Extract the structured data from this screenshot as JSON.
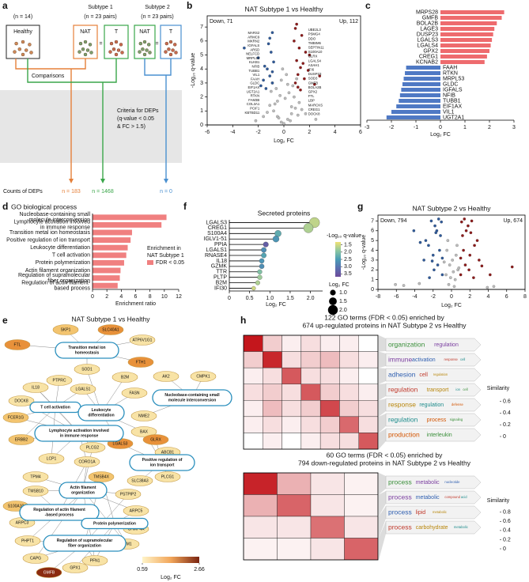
{
  "panel_labels": [
    "a",
    "b",
    "c",
    "d",
    "e",
    "f",
    "g",
    "h"
  ],
  "diagram_a": {
    "healthy": {
      "n": "(n = 14)",
      "box": "Healthy"
    },
    "subtypes": [
      {
        "title": "Subtype 1",
        "n": "(n = 23 pairs)",
        "boxes": [
          "NAT",
          "T"
        ],
        "relation": "="
      },
      {
        "title": "Subtype 2",
        "n": "(n = 23 pairs)",
        "boxes": [
          "NAT",
          "T"
        ],
        "relation": "="
      }
    ],
    "comparisons": "Comparisons",
    "criteria": [
      "Criteria for DEPs",
      "(q-value < 0.05",
      "& FC > 1.5)"
    ],
    "counts_label": "Counts of DEPs",
    "counts": [
      {
        "text": "n = 183",
        "color": "#e5803a"
      },
      {
        "text": "n = 1468",
        "color": "#3aa64a"
      },
      {
        "text": "n = 0",
        "color": "#4a90d0"
      }
    ]
  },
  "chart_data": [
    {
      "type": "volcano",
      "title": "NAT Subtype 1 vs Healthy",
      "annotations": [
        "Down, 71",
        "Up, 112"
      ],
      "xlabel": "Log₂ FC",
      "ylabel": "-Log₁₀ q-value",
      "xlim": [
        -6,
        6
      ],
      "xticks": [
        -6,
        -4,
        -2,
        0,
        2,
        4,
        6
      ],
      "ylim": [
        0,
        7.8
      ],
      "yticks": [
        0,
        1,
        2,
        3,
        4,
        5,
        6,
        7
      ],
      "series": [
        {
          "color": "#bdbdbd",
          "x": [
            -0.2,
            0.3,
            -0.5,
            0.6,
            -0.8,
            0.9,
            -1.1,
            1.2,
            0.1,
            -0.3,
            0.4,
            -0.6,
            0.7,
            -0.9,
            1.0,
            -1.3,
            1.4,
            0.2,
            -0.1,
            0.5,
            -0.4,
            0.8,
            -0.7,
            1.1,
            -1.0,
            0.0,
            -1.6,
            1.7,
            -2.2,
            2.5,
            0.3,
            -0.2,
            0.6,
            -0.5
          ],
          "y": [
            0.2,
            0.4,
            0.6,
            0.8,
            1.0,
            1.2,
            1.4,
            1.6,
            1.9,
            2.1,
            2.3,
            2.6,
            2.8,
            3.0,
            3.3,
            0.9,
            1.1,
            3.6,
            4.0,
            0.3,
            0.5,
            2.0,
            1.5,
            0.7,
            2.4,
            0.1,
            0.6,
            0.8,
            0.3,
            0.4,
            2.9,
            3.2,
            1.3,
            1.7
          ]
        },
        {
          "color": "#2f5a9a",
          "x": [
            -0.9,
            -1.1,
            -1.3,
            -0.8,
            -1.6,
            -2.0,
            -1.0,
            -1.2,
            -1.5,
            -0.9,
            -1.8,
            -1.1,
            -3.1,
            -0.9,
            -1.4
          ],
          "y": [
            3.0,
            3.5,
            4.0,
            4.5,
            3.2,
            4.8,
            5.2,
            5.8,
            4.2,
            3.8,
            2.8,
            6.2,
            5.5,
            6.6,
            2.6
          ]
        },
        {
          "color": "#8e1b1b",
          "x": [
            0.9,
            1.1,
            1.3,
            1.0,
            1.6,
            2.0,
            1.2,
            0.8,
            1.5,
            1.9,
            1.1,
            1.4,
            2.4,
            0.9,
            1.7,
            1.0,
            1.3,
            2.8
          ],
          "y": [
            3.0,
            3.6,
            4.1,
            4.6,
            3.3,
            5.0,
            5.5,
            6.0,
            4.4,
            3.9,
            2.7,
            6.4,
            2.9,
            6.9,
            5.2,
            7.2,
            2.5,
            3.5
          ]
        }
      ],
      "labels_left": [
        "MARS2",
        "ARMC9",
        "MKRN2",
        "IGFALS",
        "ARSD",
        "NELFCD",
        "MRPL53",
        "KLKB1",
        "NFIB",
        "TUBB1",
        "VIL1",
        "FAAH",
        "GLDC",
        "EIF1AX",
        "UGT2A1",
        "RTKN",
        "FAM3B",
        "COL3A1",
        "PCIF1",
        "KBTBD11"
      ],
      "labels_right": [
        "UBE2L3",
        "PSMG4",
        "DDO",
        "TMBIM6",
        "SEPTIN11",
        "S100A10",
        "GLRX",
        "LGALS4",
        "ASAH1",
        "IFI6",
        "DUSP23",
        "SOD3",
        "GMFB",
        "BOLA2B",
        "GPX2",
        "FTL",
        "LBP",
        "MARCKS",
        "CREG1",
        "DOCK8"
      ]
    },
    {
      "type": "hbar",
      "xlabel": "Log₂ FC",
      "categories": [
        "MRPS28",
        "GMFB",
        "BOLA2B",
        "LAGE3",
        "DUSP23",
        "LGALS3",
        "LGALS4",
        "GPX2",
        "CREG1",
        "KCNAB2",
        "FAAH",
        "RTKN",
        "MRPL53",
        "GLDC",
        "IGFALS",
        "NFIB",
        "TUBB1",
        "EIF1AX",
        "VIL1",
        "UGT2A1"
      ],
      "values": [
        2.6,
        2.5,
        2.3,
        2.2,
        2.15,
        2.1,
        2.05,
        2.0,
        1.9,
        1.8,
        -1.4,
        -1.45,
        -1.5,
        -1.55,
        -1.6,
        -1.65,
        -1.7,
        -1.8,
        -2.0,
        -2.2
      ],
      "color_positive": "#ee6b6e",
      "color_negative": "#4f79c4",
      "xlim": [
        -3,
        3
      ],
      "xticks": [
        -3,
        -2,
        -1,
        0,
        1,
        2,
        3
      ]
    },
    {
      "type": "hbar",
      "title": "GO biological process",
      "xlabel": "Enrichment ratio",
      "categories": [
        [
          "Nucleobase-containing small",
          "molecule interconversion"
        ],
        [
          "Lymphocyte activation involved",
          "in immune response"
        ],
        [
          "Transition metal ion homeostasis"
        ],
        [
          "Positive regulation of ion transport"
        ],
        [
          "Leukocyte differentiation"
        ],
        [
          "T cell activation"
        ],
        [
          "Protein polymerization"
        ],
        [
          "Actin filament organization"
        ],
        [
          "Regulation of supramolecular",
          "fiber organization"
        ],
        [
          "Regulation of actin filament-",
          "based process"
        ]
      ],
      "values": [
        10.3,
        9.6,
        5.5,
        5.3,
        4.9,
        4.7,
        4.4,
        3.9,
        3.8,
        3.5
      ],
      "color": "#f08080",
      "legend": [
        "Enrichment in",
        "NAT Subtype 1"
      ],
      "legend_entry": "FDR < 0.05",
      "xlim": [
        0,
        12
      ],
      "xticks": [
        0,
        2,
        4,
        6,
        8,
        10,
        12
      ]
    },
    {
      "type": "lollipop",
      "title": "Secreted proteins",
      "xlabel": "Log₂ FC",
      "categories": [
        "LGALS3",
        "CREG1",
        "S100A4",
        "IGLV1-51",
        "PPIA",
        "LGALS1",
        "RNASE4",
        "IL18",
        "GZMK",
        "TTR",
        "PLTP",
        "B2M",
        "IFI30"
      ],
      "values": [
        2.1,
        1.95,
        1.2,
        1.15,
        0.9,
        0.85,
        0.85,
        0.8,
        0.8,
        0.75,
        0.75,
        0.7,
        0.6
      ],
      "color_values": [
        1.6,
        1.7,
        2.3,
        2.6,
        3.4,
        2.7,
        2.4,
        2.6,
        2.7,
        2.0,
        1.8,
        1.7,
        1.5
      ],
      "xlim": [
        0,
        2.3
      ],
      "xticks": [
        0,
        0.5,
        {
          "value": 1,
          "label": "1.0"
        },
        1.5,
        {
          "value": 2,
          "label": "2.0"
        }
      ],
      "colorbar_title": "-Log₁₀ q-value",
      "clim": [
        1.3,
        3.7
      ],
      "colorbar_ticks": [
        1.5,
        {
          "value": 2,
          "label": "2.0"
        },
        2.5,
        {
          "value": 3,
          "label": "3.0"
        },
        3.5
      ],
      "colormap": [
        "#f1e173",
        "#8cc7a1",
        "#4a9db6",
        "#5a6fb0",
        "#6d4a9a"
      ],
      "size_title": "Log₂ FC",
      "size_ticks": [
        {
          "value": 1,
          "label": "1.0"
        },
        1.5,
        {
          "value": 2,
          "label": "2.0"
        }
      ]
    },
    {
      "type": "volcano",
      "title": "NAT Subtype 2 vs Healthy",
      "annotations": [
        "Down, 794",
        "Up, 674"
      ],
      "xlabel": "Log₂ FC",
      "ylabel": "-Log₁₀ q-value",
      "xlim": [
        -8,
        8
      ],
      "xticks": [
        -8,
        -6,
        -4,
        -2,
        0,
        2,
        4,
        6,
        8
      ],
      "ylim": [
        0,
        7.6
      ],
      "yticks": [
        0,
        1,
        2,
        3,
        4,
        5,
        6,
        7
      ],
      "series": [
        {
          "color": "#bdbdbd",
          "x": [
            -0.3,
            0.4,
            -0.6,
            0.7,
            -0.2,
            0.1,
            0.5,
            -0.5,
            0.3,
            -0.1,
            0.8,
            -0.8,
            0.6,
            -0.4,
            0.2,
            -3.5,
            -5.2,
            4.6,
            -6.1,
            3.9
          ],
          "y": [
            0.5,
            1.0,
            1.5,
            2.0,
            2.5,
            3.0,
            3.5,
            4.0,
            0.3,
            1.2,
            2.2,
            2.8,
            4.5,
            5.0,
            1.8,
            0.6,
            0.4,
            0.3,
            0.5,
            0.2
          ]
        },
        {
          "color": "#2f5a9a",
          "x": [
            -1.0,
            -1.5,
            -2.0,
            -2.5,
            -1.2,
            -1.8,
            -2.2,
            -3.0,
            -1.1,
            -1.6,
            -2.8,
            -1.3,
            -1.9,
            -2.4,
            -1.0,
            -3.4,
            -4.1,
            -1.4,
            -2.1,
            -1.7
          ],
          "y": [
            1.5,
            2.5,
            3.5,
            4.5,
            5.5,
            6.5,
            7.0,
            3.0,
            6.9,
            6.0,
            5.0,
            4.0,
            2.0,
            1.2,
            3.2,
            4.8,
            6.0,
            7.2,
            2.9,
            5.8
          ]
        },
        {
          "color": "#8e1b1b",
          "x": [
            1.0,
            1.5,
            2.0,
            2.5,
            1.2,
            1.8,
            2.2,
            3.0,
            1.1,
            1.6,
            2.8,
            1.3,
            1.9,
            2.4,
            1.0,
            3.3,
            4.2,
            6.6,
            1.4,
            2.1
          ],
          "y": [
            1.5,
            2.5,
            3.5,
            4.5,
            5.5,
            6.5,
            7.0,
            3.0,
            6.9,
            6.0,
            5.0,
            4.0,
            2.0,
            1.2,
            3.2,
            2.4,
            1.5,
            2.3,
            7.2,
            5.8
          ]
        }
      ]
    }
  ],
  "network_e": {
    "title": "NAT Subtype 1 vs Healthy",
    "terms": [
      [
        "Transition metal ion",
        "homeostasis"
      ],
      [
        "Nucleobase-containing small",
        "molecule interconversion"
      ],
      [
        "T cell activation"
      ],
      [
        "Leukocyte",
        "differentiation"
      ],
      [
        "Lymphocyte activation involved",
        "in immune response"
      ],
      [
        "Positive regulation of",
        "ion transport"
      ],
      [
        "Actin filament",
        "organization"
      ],
      [
        "Regulation of actin filament",
        "-based process"
      ],
      [
        "Protein polymerization"
      ],
      [
        "Regulation of supramolecular",
        "fiber organization"
      ]
    ],
    "nodes": [
      {
        "label": "SKP1",
        "color": "#f3c46f"
      },
      {
        "label": "SLC40A1",
        "color": "#e8913a"
      },
      {
        "label": "ATP6V1G1",
        "color": "#f8e3a6"
      },
      {
        "label": "FTL",
        "color": "#e8913a"
      },
      {
        "label": "FTH1",
        "color": "#e8913a"
      },
      {
        "label": "SOD1",
        "color": "#f8e3a6"
      },
      {
        "label": "B2M",
        "color": "#f8e3a6"
      },
      {
        "label": "PTPRC",
        "color": "#f8e3a6"
      },
      {
        "label": "AK2",
        "color": "#f8e3a6"
      },
      {
        "label": "CMPK1",
        "color": "#f8e3a6"
      },
      {
        "label": "IL18",
        "color": "#f8e3a6"
      },
      {
        "label": "LGALS1",
        "color": "#f8e3a6"
      },
      {
        "label": "FASN",
        "color": "#f8e3a6"
      },
      {
        "label": "DOCK8",
        "color": "#f8e3a6"
      },
      {
        "label": "FCER1G",
        "color": "#f3c46f"
      },
      {
        "label": "NME2",
        "color": "#f8e3a6"
      },
      {
        "label": "BAX",
        "color": "#f8e3a6"
      },
      {
        "label": "ERBB2",
        "color": "#f3c46f"
      },
      {
        "label": "LGALS3",
        "color": "#e8913a"
      },
      {
        "label": "GLRX",
        "color": "#e8913a"
      },
      {
        "label": "PLCG2",
        "color": "#f8e3a6"
      },
      {
        "label": "ABCB1",
        "color": "#f8e3a6"
      },
      {
        "label": "LCP1",
        "color": "#f8e3a6"
      },
      {
        "label": "CORO1A",
        "color": "#f8e3a6"
      },
      {
        "label": "PLCG1",
        "color": "#f8e3a6"
      },
      {
        "label": "TPM4",
        "color": "#f8e3a6"
      },
      {
        "label": "TMSB4X",
        "color": "#f3c46f"
      },
      {
        "label": "SLC38A3",
        "color": "#f8e3a6"
      },
      {
        "label": "TMSB10",
        "color": "#f8e3a6"
      },
      {
        "label": "PSTPIP2",
        "color": "#f8e3a6"
      },
      {
        "label": "S100A10",
        "color": "#f3c46f"
      },
      {
        "label": "ARPC5",
        "color": "#f8e3a6"
      },
      {
        "label": "ARPC3",
        "color": "#f8e3a6"
      },
      {
        "label": "CHMP4A",
        "color": "#f8e3a6"
      },
      {
        "label": "PHPT1",
        "color": "#f8e3a6"
      },
      {
        "label": "TPM1",
        "color": "#f8e3a6"
      },
      {
        "label": "CAPG",
        "color": "#f8e3a6"
      },
      {
        "label": "PFN1",
        "color": "#f8e3a6"
      },
      {
        "label": "GPX1",
        "color": "#f8e3a6"
      },
      {
        "label": "GMFB",
        "color": "#8b2a10"
      }
    ],
    "colorbar_ticks": [
      0.59,
      2.66
    ],
    "colorbar_label": "Log₂ FC",
    "colormap": [
      "#fff4c8",
      "#f2a65a",
      "#7a2410"
    ]
  },
  "heatmaps_h": [
    {
      "title": [
        "122 GO terms (FDR < 0.05) enriched by",
        "674 up-regulated proteins in NAT Subtype 2 vs Healthy"
      ],
      "matrix": [
        [
          0.7,
          0.15,
          0.05,
          0.1,
          0.05,
          0.05,
          0
        ],
        [
          0.15,
          0.65,
          0.1,
          0.15,
          0.2,
          0.1,
          0.05
        ],
        [
          0.05,
          0.1,
          0.5,
          0.1,
          0.1,
          0.05,
          0
        ],
        [
          0.1,
          0.15,
          0.1,
          0.5,
          0.15,
          0.1,
          0.05
        ],
        [
          0.05,
          0.2,
          0.1,
          0.15,
          0.55,
          0.15,
          0.1
        ],
        [
          0.05,
          0.1,
          0.05,
          0.1,
          0.15,
          0.45,
          0.1
        ],
        [
          0,
          0.05,
          0,
          0.05,
          0.1,
          0.1,
          0.5
        ]
      ],
      "clim": [
        0,
        0.7
      ],
      "colorbar_title": "Similarity",
      "colorbar_ticks": [
        0,
        0.2,
        0.4,
        0.6
      ],
      "words": [
        [
          "organization",
          "regulation",
          "assembly"
        ],
        [
          "immune",
          "activation",
          "response",
          "regulation",
          "cell"
        ],
        [
          "adhesion",
          "cell",
          "regulation"
        ],
        [
          "regulation",
          "transport",
          "ion",
          "positive",
          "cell"
        ],
        [
          "response",
          "regulation",
          "defense",
          "stimulus",
          "positive"
        ],
        [
          "regulation",
          "process",
          "signaling",
          "pathway"
        ],
        [
          "production",
          "interleukin",
          "regulation"
        ]
      ]
    },
    {
      "title": [
        "60 GO terms (FDR < 0.05) enriched by",
        "794 down-regulated proteins in NAT Subtype 2 vs Healthy"
      ],
      "matrix": [
        [
          0.85,
          0.3,
          0.1,
          0.05
        ],
        [
          0.3,
          0.6,
          0.1,
          0.05
        ],
        [
          0.1,
          0.1,
          0.55,
          0.1
        ],
        [
          0.05,
          0.05,
          0.1,
          0.6
        ]
      ],
      "clim": [
        0,
        0.9
      ],
      "colorbar_title": "Similarity",
      "colorbar_ticks": [
        0,
        0.2,
        0.4,
        0.6,
        0.8
      ],
      "words": [
        [
          "process",
          "metabolic",
          "nucleotide",
          "biosynthetic"
        ],
        [
          "process",
          "metabolic",
          "compound",
          "cellular",
          "acid"
        ],
        [
          "process",
          "lipid",
          "metabolic"
        ],
        [
          "process",
          "carbohydrate",
          "metabolic"
        ]
      ]
    }
  ]
}
